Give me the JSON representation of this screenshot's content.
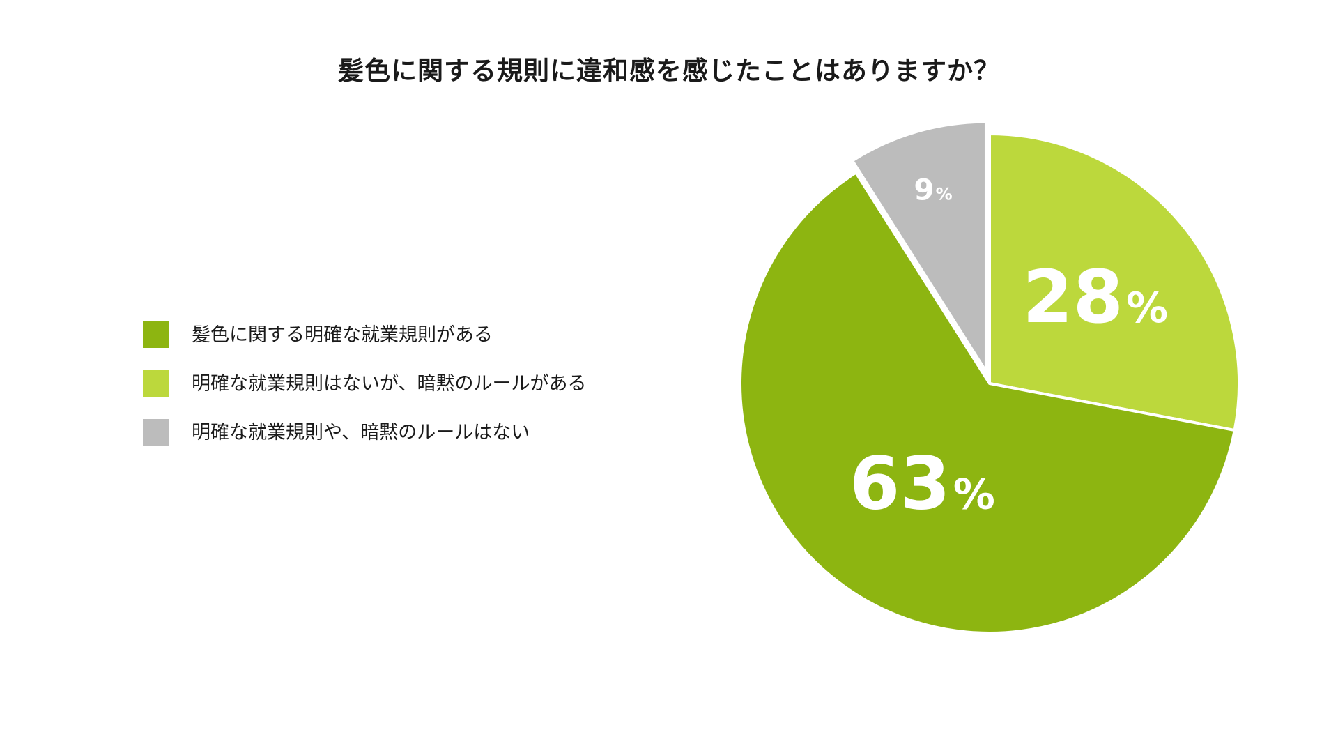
{
  "chart_data": {
    "type": "pie",
    "title": "髪色に関する規則に違和感を感じたことはありますか？",
    "categories": [
      "髪色に関する明確な就業規則がある",
      "明確な就業規則はないが、暗黙のルールがある",
      "明確な就業規則や、暗黙のルールはない"
    ],
    "values": [
      63,
      28,
      9
    ],
    "labels": [
      "63",
      "28",
      "9"
    ],
    "unit": "%",
    "colors": [
      "#8db511",
      "#bcd83c",
      "#bcbcbc"
    ],
    "legend_position": "left",
    "grid": false
  }
}
